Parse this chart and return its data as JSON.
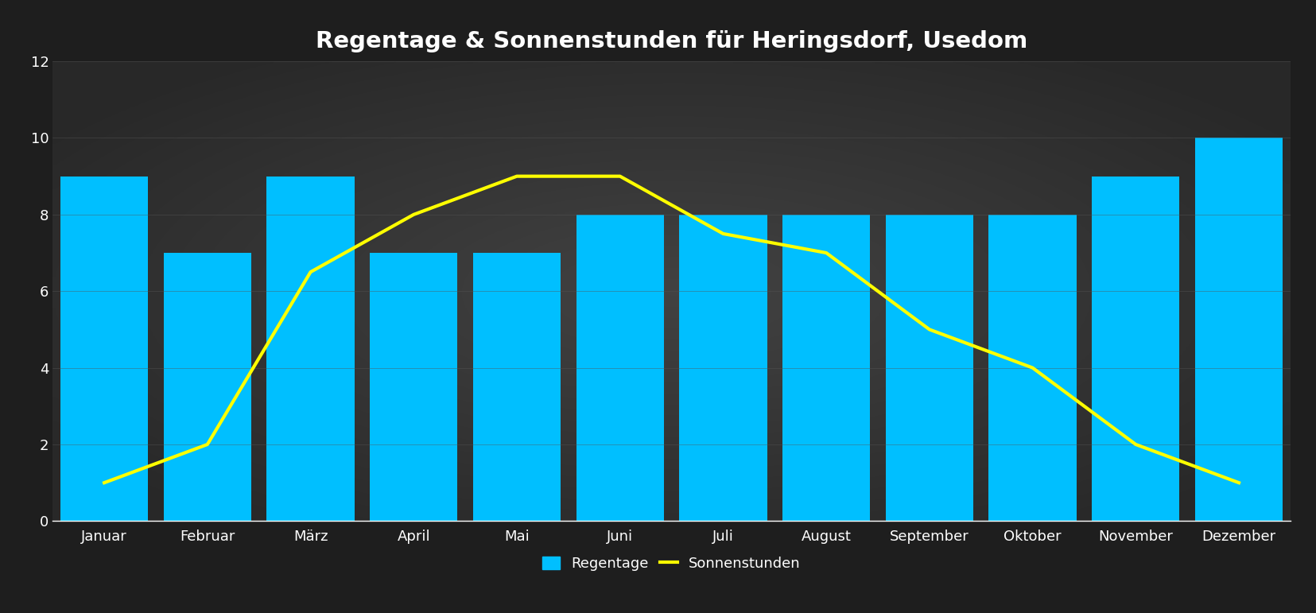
{
  "months": [
    "Januar",
    "Februar",
    "März",
    "April",
    "Mai",
    "Juni",
    "Juli",
    "August",
    "September",
    "Oktober",
    "November",
    "Dezember"
  ],
  "regentage": [
    9,
    7,
    9,
    7,
    7,
    8,
    8,
    8,
    8,
    8,
    9,
    10
  ],
  "sonnenstunden": [
    1,
    2,
    6.5,
    8,
    9,
    9,
    7.5,
    7,
    5,
    4,
    2,
    1
  ],
  "bar_color": "#00BFFF",
  "line_color": "#FFFF00",
  "background_dark": "#1e1e1e",
  "background_mid": "#3a3a3a",
  "title": "Regentage & Sonnenstunden für Heringsdorf, Usedom",
  "title_color": "#ffffff",
  "title_fontsize": 21,
  "tick_color": "#ffffff",
  "grid_color": "#555555",
  "ylim": [
    0,
    12
  ],
  "yticks": [
    0,
    2,
    4,
    6,
    8,
    10,
    12
  ],
  "legend_labels": [
    "Regentage",
    "Sonnenstunden"
  ],
  "line_width": 3.0,
  "bar_width": 0.85
}
